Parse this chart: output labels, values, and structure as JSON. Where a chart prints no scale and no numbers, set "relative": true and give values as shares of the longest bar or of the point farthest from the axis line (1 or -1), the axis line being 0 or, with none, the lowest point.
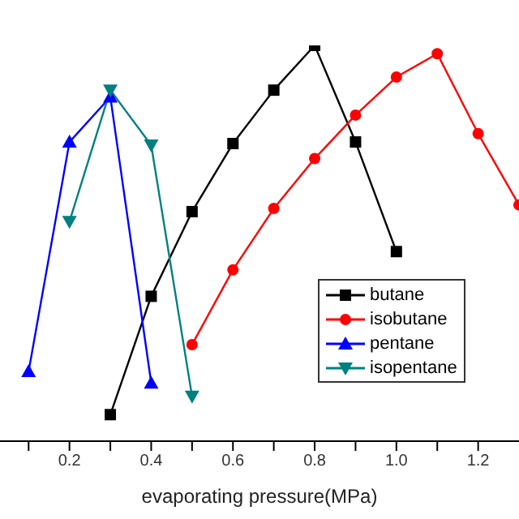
{
  "chart_data": {
    "type": "line",
    "xlabel": "evaporating pressure(MPa)",
    "relative": true,
    "xlim": [
      0.03,
      1.3
    ],
    "xticks": [
      {
        "value": 0.1,
        "label": null
      },
      0.2,
      {
        "value": 0.3,
        "label": null
      },
      0.4,
      {
        "value": 0.5,
        "label": null
      },
      0.6,
      {
        "value": 0.7,
        "label": null
      },
      0.8,
      {
        "value": 0.9,
        "label": null
      },
      {
        "value": 1.0,
        "label": "1.0"
      },
      {
        "value": 1.1,
        "label": null
      },
      1.2
    ],
    "grid": false,
    "legend": "bottom right",
    "line_style": "solid",
    "series": [
      {
        "name": "butane",
        "color": "#000000",
        "marker": "square",
        "x": [
          0.3,
          0.4,
          0.5,
          0.6,
          0.7,
          0.8,
          0.9,
          1.0
        ],
        "values": [
          0.067,
          0.366,
          0.58,
          0.752,
          0.887,
          1,
          0.756,
          0.479
        ]
      },
      {
        "name": "isobutane",
        "color": "#ff0000",
        "marker": "circle",
        "x": [
          0.5,
          0.6,
          0.7,
          0.8,
          0.9,
          1.0,
          1.1,
          1.2,
          1.3
        ],
        "values": [
          0.244,
          0.433,
          0.588,
          0.714,
          0.824,
          0.92,
          0.979,
          0.777,
          0.597
        ]
      },
      {
        "name": "pentane",
        "color": "#0000ff",
        "marker": "triangle",
        "x": [
          0.1,
          0.2,
          0.3,
          0.4
        ],
        "values": [
          0.176,
          0.756,
          0.87,
          0.147
        ]
      },
      {
        "name": "isopentane",
        "color": "#008080",
        "marker": "triangle-down",
        "x": [
          0.2,
          0.3,
          0.4,
          0.5
        ],
        "values": [
          0.555,
          0.887,
          0.748,
          0.113
        ]
      }
    ]
  }
}
